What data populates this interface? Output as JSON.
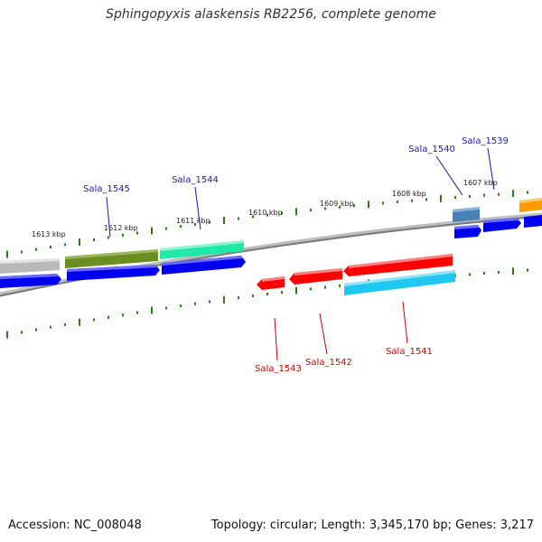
{
  "title": "Sphingopyxis alaskensis RB2256, complete genome",
  "footer": {
    "accession": "Accession: NC_008048",
    "summary": "Topology: circular; Length: 3,345,170 bp; Genes: 3,217"
  },
  "colors": {
    "backbone": "#888888",
    "tick": "#2a7a1a",
    "forward_label": "#1a1aaa",
    "reverse_label": "#cc0000",
    "cds_forward": "#0000ee",
    "cds_reverse": "#ff0000",
    "feature_grey": "#b8b8b8",
    "feature_olive": "#6b8e23",
    "feature_spring": "#20e8a8",
    "feature_steel": "#4682b4",
    "feature_orange": "#ff9900",
    "feature_sky": "#1ec8f0"
  },
  "scale_labels": [
    "1613 kbp",
    "1612 kbp",
    "1611 kbp",
    "1610 kbp",
    "1609 kbp",
    "1608 kbp",
    "1607 kbp"
  ],
  "forward_genes": [
    {
      "label": "Sala_1545"
    },
    {
      "label": "Sala_1544"
    },
    {
      "label": "Sala_1540"
    },
    {
      "label": "Sala_1539"
    }
  ],
  "reverse_genes": [
    {
      "label": "Sala_1543"
    },
    {
      "label": "Sala_1542"
    },
    {
      "label": "Sala_1541"
    }
  ]
}
